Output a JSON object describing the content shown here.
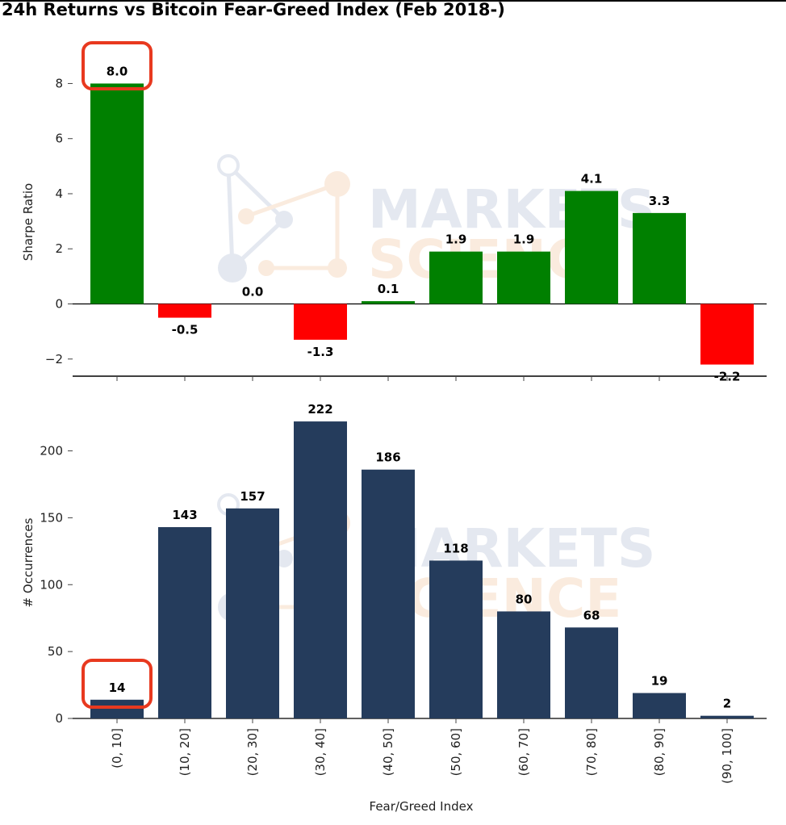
{
  "title": "24h Returns vs Bitcoin Fear-Greed Index (Feb 2018-)",
  "colors": {
    "positive": "#008000",
    "negative": "#ff0000",
    "occurrences": "#253c5c",
    "highlight": "#e8391f",
    "watermark_blue": "#cfd6e4",
    "watermark_orange": "#f6dcc4"
  },
  "watermark": {
    "line1": "MARKETS",
    "line2": "SCIENCE",
    "icon": "molecule-logo"
  },
  "chart_data": [
    {
      "type": "bar",
      "title": "24h Returns vs Bitcoin Fear-Greed Index (Feb 2018-)",
      "ylabel": "Sharpe Ratio",
      "xlabel": "",
      "ylim": [
        -2.7,
        9.6
      ],
      "yticks": [
        -2,
        0,
        2,
        4,
        6,
        8
      ],
      "ytick_labels": [
        "−2",
        "0",
        "2",
        "4",
        "6",
        "8"
      ],
      "categories": [
        "(0, 10]",
        "(10, 20]",
        "(20, 30]",
        "(30, 40]",
        "(40, 50]",
        "(50, 60]",
        "(60, 70]",
        "(70, 80]",
        "(80, 90]",
        "(90, 100]"
      ],
      "values": [
        8.0,
        -0.5,
        0.0,
        -1.3,
        0.1,
        1.9,
        1.9,
        4.1,
        3.3,
        -2.2
      ],
      "data_labels": [
        "8.0",
        "-0.5",
        "0.0",
        "-1.3",
        "0.1",
        "1.9",
        "1.9",
        "4.1",
        "3.3",
        "-2.2"
      ],
      "highlight_index": 0,
      "grid": false
    },
    {
      "type": "bar",
      "ylabel": "# Occurrences",
      "xlabel": "Fear/Greed Index",
      "ylim": [
        0,
        240
      ],
      "yticks": [
        0,
        50,
        100,
        150,
        200
      ],
      "ytick_labels": [
        "0",
        "50",
        "100",
        "150",
        "200"
      ],
      "categories": [
        "(0, 10]",
        "(10, 20]",
        "(20, 30]",
        "(30, 40]",
        "(40, 50]",
        "(50, 60]",
        "(60, 70]",
        "(70, 80]",
        "(80, 90]",
        "(90, 100]"
      ],
      "values": [
        14,
        143,
        157,
        222,
        186,
        118,
        80,
        68,
        19,
        2
      ],
      "data_labels": [
        "14",
        "143",
        "157",
        "222",
        "186",
        "118",
        "80",
        "68",
        "19",
        "2"
      ],
      "highlight_index": 0,
      "grid": false
    }
  ]
}
